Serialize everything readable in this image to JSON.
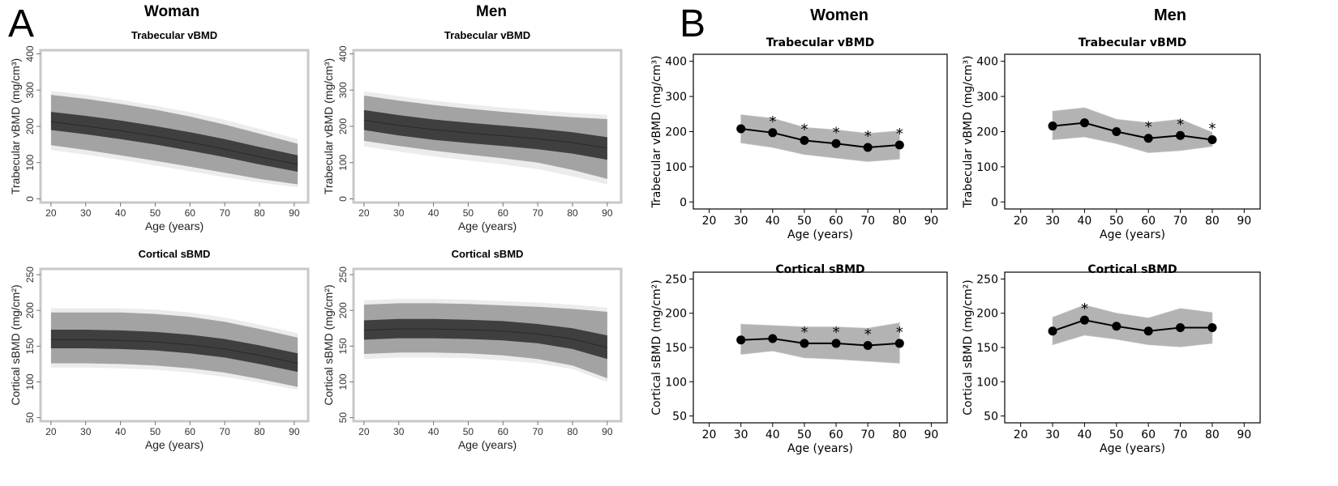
{
  "panel_letters": [
    "A",
    "B"
  ],
  "column_titles": {
    "a_left": "Woman",
    "a_right": "Men",
    "b_left": "Women",
    "b_right": "Men"
  },
  "colors": {
    "outer_band": "#ececec",
    "mid_band": "#a3a3a3",
    "inner_band": "#3f3f3f",
    "median_line": "#2a2a2a",
    "ci_band": "#b3b3b3",
    "marker": "#000000"
  },
  "chart_data": [
    {
      "id": "A-women-trabecular",
      "type": "area",
      "title": "Trabecular vBMD",
      "xlabel": "Age (years)",
      "ylabel": "Trabecular vBMD (mg/cm³)",
      "xlim": [
        17,
        94
      ],
      "ylim": [
        -10,
        410
      ],
      "xticks": [
        20,
        30,
        40,
        50,
        60,
        70,
        80,
        90
      ],
      "yticks": [
        0,
        100,
        200,
        300,
        400
      ],
      "grid": false,
      "x": [
        20,
        30,
        40,
        50,
        60,
        70,
        80,
        91
      ],
      "bands": {
        "p3": [
          135,
          122,
          108,
          92,
          76,
          60,
          45,
          32
        ],
        "p10": [
          148,
          135,
          120,
          105,
          89,
          72,
          55,
          40
        ],
        "p25": [
          190,
          178,
          165,
          150,
          133,
          115,
          95,
          75
        ],
        "p50": [
          213,
          201,
          188,
          173,
          156,
          137,
          116,
          95
        ],
        "p75": [
          240,
          229,
          216,
          201,
          184,
          165,
          143,
          120
        ],
        "p90": [
          287,
          276,
          262,
          246,
          227,
          205,
          180,
          152
        ],
        "p97": [
          298,
          287,
          273,
          257,
          239,
          218,
          193,
          165
        ]
      }
    },
    {
      "id": "A-men-trabecular",
      "type": "area",
      "title": "Trabecular vBMD",
      "xlabel": "Age (years)",
      "ylabel": "Trabecular vBMD (mg/cm³)",
      "xlim": [
        17,
        94
      ],
      "ylim": [
        -10,
        410
      ],
      "xticks": [
        20,
        30,
        40,
        50,
        60,
        70,
        80,
        90
      ],
      "yticks": [
        0,
        100,
        200,
        300,
        400
      ],
      "grid": false,
      "x": [
        20,
        30,
        40,
        50,
        60,
        70,
        80,
        90
      ],
      "bands": {
        "p3": [
          145,
          130,
          117,
          106,
          95,
          82,
          62,
          40
        ],
        "p10": [
          160,
          146,
          133,
          122,
          112,
          100,
          80,
          55
        ],
        "p25": [
          190,
          175,
          163,
          154,
          146,
          137,
          125,
          108
        ],
        "p50": [
          217,
          203,
          191,
          182,
          174,
          166,
          155,
          140
        ],
        "p75": [
          245,
          231,
          219,
          210,
          202,
          194,
          184,
          170
        ],
        "p90": [
          285,
          271,
          259,
          249,
          240,
          232,
          225,
          220
        ],
        "p97": [
          297,
          283,
          271,
          261,
          252,
          244,
          237,
          232
        ]
      }
    },
    {
      "id": "A-women-cortical",
      "type": "area",
      "title": "Cortical sBMD",
      "xlabel": "Age (years)",
      "ylabel": "Cortical sBMD (mg/cm²)",
      "xlim": [
        17,
        94
      ],
      "ylim": [
        45,
        258
      ],
      "xticks": [
        20,
        30,
        40,
        50,
        60,
        70,
        80,
        90
      ],
      "yticks": [
        50,
        100,
        150,
        200,
        250
      ],
      "grid": false,
      "x": [
        20,
        30,
        40,
        50,
        60,
        70,
        80,
        91
      ],
      "bands": {
        "p3": [
          120,
          120,
          119,
          117,
          113,
          107,
          99,
          89
        ],
        "p10": [
          126,
          126,
          125,
          123,
          119,
          113,
          104,
          93
        ],
        "p25": [
          147,
          147,
          146,
          144,
          140,
          134,
          125,
          114
        ],
        "p50": [
          159,
          159,
          158,
          156,
          152,
          146,
          137,
          126
        ],
        "p75": [
          173,
          173,
          172,
          170,
          166,
          160,
          151,
          140
        ],
        "p90": [
          197,
          197,
          197,
          195,
          191,
          184,
          174,
          162
        ],
        "p97": [
          203,
          203,
          203,
          201,
          197,
          190,
          180,
          168
        ]
      }
    },
    {
      "id": "A-men-cortical",
      "type": "area",
      "title": "Cortical sBMD",
      "xlabel": "Age (years)",
      "ylabel": "Cortical sBMD (mg/cm²)",
      "xlim": [
        17,
        94
      ],
      "ylim": [
        45,
        258
      ],
      "xticks": [
        20,
        30,
        40,
        50,
        60,
        70,
        80,
        90
      ],
      "yticks": [
        50,
        100,
        150,
        200,
        250
      ],
      "grid": false,
      "x": [
        20,
        30,
        40,
        50,
        60,
        70,
        80,
        90
      ],
      "bands": {
        "p3": [
          132,
          134,
          134,
          133,
          130,
          126,
          118,
          100
        ],
        "p10": [
          139,
          141,
          141,
          140,
          137,
          132,
          123,
          105
        ],
        "p25": [
          159,
          161,
          161,
          160,
          158,
          154,
          146,
          132
        ],
        "p50": [
          172,
          174,
          174,
          173,
          171,
          167,
          160,
          148
        ],
        "p75": [
          186,
          188,
          188,
          187,
          185,
          181,
          175,
          165
        ],
        "p90": [
          208,
          210,
          210,
          209,
          207,
          205,
          202,
          198
        ],
        "p97": [
          214,
          216,
          216,
          215,
          213,
          211,
          208,
          204
        ]
      }
    },
    {
      "id": "B-women-trabecular",
      "type": "line",
      "title": "Trabecular vBMD",
      "xlabel": "Age (years)",
      "ylabel": "Trabecular vBMD (mg/cm³)",
      "xlim": [
        15,
        95
      ],
      "ylim": [
        -20,
        420
      ],
      "xticks": [
        20,
        30,
        40,
        50,
        60,
        70,
        80,
        90
      ],
      "yticks": [
        0,
        100,
        200,
        300,
        400
      ],
      "grid": false,
      "x": [
        30,
        40,
        50,
        60,
        70,
        80
      ],
      "y": [
        208,
        197,
        175,
        166,
        155,
        162
      ],
      "ci_upper": [
        248,
        238,
        212,
        205,
        195,
        202
      ],
      "ci_lower": [
        168,
        155,
        135,
        125,
        115,
        122
      ],
      "significant": [
        false,
        true,
        true,
        true,
        true,
        true
      ],
      "star_label": "*"
    },
    {
      "id": "B-men-trabecular",
      "type": "line",
      "title": "Trabecular vBMD",
      "xlabel": "Age (years)",
      "ylabel": "Trabecular vBMD (mg/cm³)",
      "xlim": [
        15,
        95
      ],
      "ylim": [
        -20,
        420
      ],
      "xticks": [
        20,
        30,
        40,
        50,
        60,
        70,
        80,
        90
      ],
      "yticks": [
        0,
        100,
        200,
        300,
        400
      ],
      "grid": false,
      "x": [
        30,
        40,
        50,
        60,
        70,
        80
      ],
      "y": [
        216,
        225,
        200,
        181,
        189,
        177
      ],
      "ci_upper": [
        258,
        268,
        235,
        225,
        235,
        198
      ],
      "ci_lower": [
        177,
        185,
        166,
        140,
        146,
        158
      ],
      "significant": [
        false,
        false,
        false,
        true,
        true,
        true
      ],
      "star_label": "*"
    },
    {
      "id": "B-women-cortical",
      "type": "line",
      "title": "Cortical sBMD",
      "xlabel": "Age (years)",
      "ylabel": "Cortical sBMD (mg/cm²)",
      "xlim": [
        15,
        95
      ],
      "ylim": [
        40,
        260
      ],
      "xticks": [
        20,
        30,
        40,
        50,
        60,
        70,
        80,
        90
      ],
      "yticks": [
        50,
        100,
        150,
        200,
        250
      ],
      "grid": false,
      "x": [
        30,
        40,
        50,
        60,
        70,
        80
      ],
      "y": [
        161,
        163,
        156,
        156,
        153,
        156
      ],
      "ci_upper": [
        184,
        182,
        180,
        180,
        178,
        186
      ],
      "ci_lower": [
        140,
        145,
        135,
        133,
        130,
        127
      ],
      "significant": [
        false,
        false,
        true,
        true,
        true,
        true
      ],
      "star_label": "*"
    },
    {
      "id": "B-men-cortical",
      "type": "line",
      "title": "Cortical sBMD",
      "xlabel": "Age (years)",
      "ylabel": "Cortical sBMD (mg/cm²)",
      "xlim": [
        15,
        95
      ],
      "ylim": [
        40,
        260
      ],
      "xticks": [
        20,
        30,
        40,
        50,
        60,
        70,
        80,
        90
      ],
      "yticks": [
        50,
        100,
        150,
        200,
        250
      ],
      "grid": false,
      "x": [
        30,
        40,
        50,
        60,
        70,
        80
      ],
      "y": [
        174,
        190,
        181,
        174,
        179,
        179
      ],
      "ci_upper": [
        194,
        212,
        200,
        193,
        207,
        201
      ],
      "ci_lower": [
        154,
        168,
        162,
        154,
        151,
        156
      ],
      "significant": [
        false,
        true,
        false,
        false,
        false,
        false
      ],
      "star_label": "*"
    }
  ]
}
